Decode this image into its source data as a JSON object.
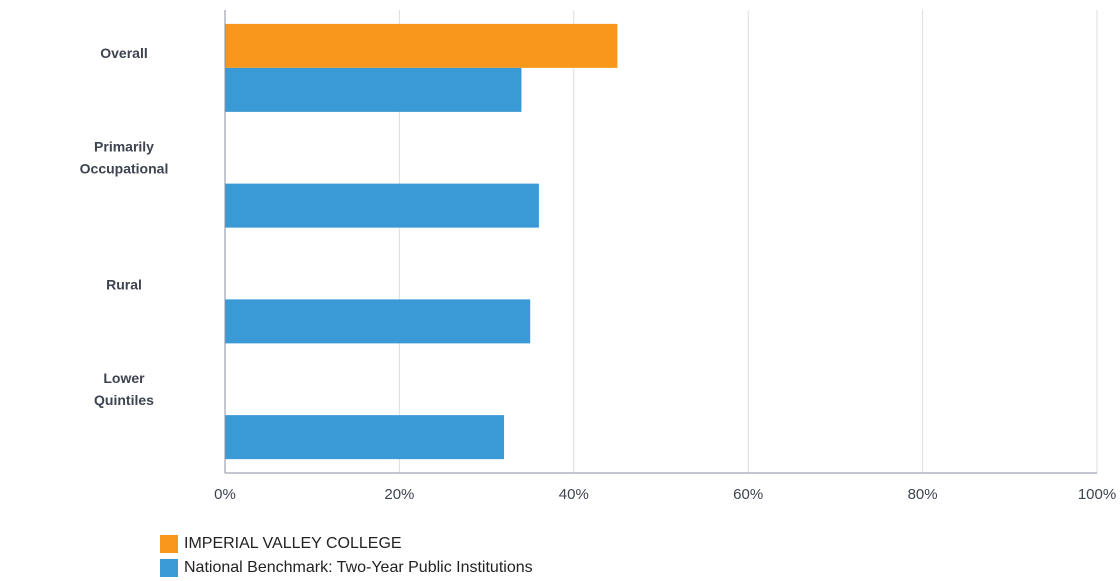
{
  "chart_data": {
    "type": "bar",
    "orientation": "horizontal",
    "categories": [
      [
        "Overall"
      ],
      [
        "Primarily",
        "Occupational"
      ],
      [
        "Rural"
      ],
      [
        "Lower",
        "Quintiles"
      ]
    ],
    "series": [
      {
        "name": "IMPERIAL VALLEY COLLEGE",
        "color": "#f7981d",
        "values": [
          45,
          null,
          null,
          null
        ]
      },
      {
        "name": "National Benchmark: Two-Year Public Institutions",
        "color": "#3a9ad6",
        "values": [
          34,
          36,
          35,
          32
        ]
      }
    ],
    "xlim": [
      0,
      100
    ],
    "xticks": [
      0,
      20,
      40,
      60,
      80,
      100
    ],
    "tick_labels": [
      "0%",
      "20%",
      "40%",
      "60%",
      "80%",
      "100%"
    ],
    "grid": true,
    "legend_position": "bottom-left"
  }
}
